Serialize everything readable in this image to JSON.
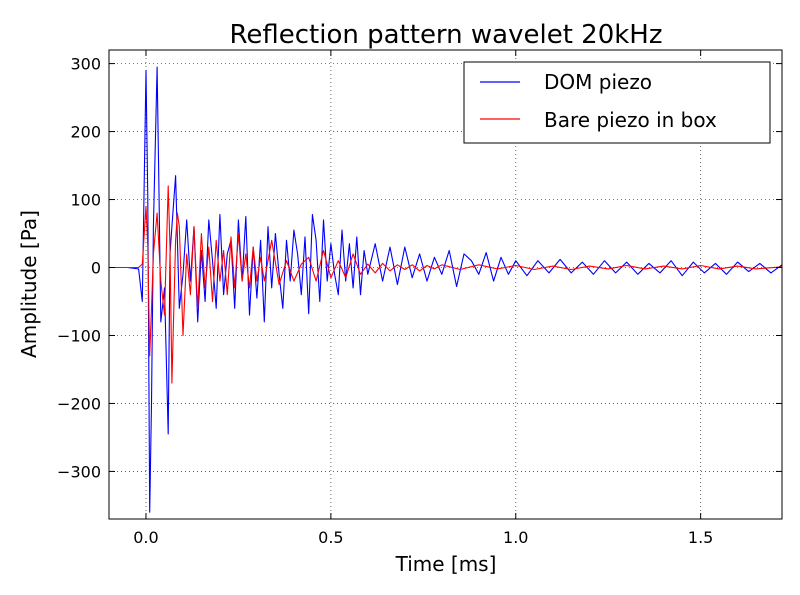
{
  "chart_data": {
    "type": "line",
    "title": "Reflection pattern wavelet 20kHz",
    "xlabel": "Time [ms]",
    "ylabel": "Amplitude [Pa]",
    "xlim": [
      -0.1,
      1.72
    ],
    "ylim": [
      -370,
      320
    ],
    "xticks": [
      0.0,
      0.5,
      1.0,
      1.5
    ],
    "xtick_labels": [
      "0.0",
      "0.5",
      "1.0",
      "1.5"
    ],
    "yticks": [
      300,
      200,
      100,
      0,
      -100,
      -200,
      -300
    ],
    "ytick_labels": [
      "300",
      "200",
      "100",
      "0",
      "−100",
      "−200",
      "−300"
    ],
    "grid": true,
    "legend_position": "top-right",
    "series": [
      {
        "name": "DOM piezo",
        "color": "#0000ff",
        "x": [
          -0.1,
          -0.05,
          -0.02,
          -0.01,
          0.0,
          0.005,
          0.01,
          0.015,
          0.02,
          0.03,
          0.035,
          0.04,
          0.05,
          0.06,
          0.065,
          0.07,
          0.08,
          0.09,
          0.1,
          0.11,
          0.12,
          0.13,
          0.14,
          0.15,
          0.16,
          0.17,
          0.18,
          0.19,
          0.2,
          0.21,
          0.22,
          0.23,
          0.24,
          0.25,
          0.26,
          0.27,
          0.28,
          0.29,
          0.3,
          0.31,
          0.32,
          0.33,
          0.34,
          0.35,
          0.36,
          0.37,
          0.38,
          0.39,
          0.4,
          0.41,
          0.42,
          0.43,
          0.44,
          0.45,
          0.46,
          0.47,
          0.48,
          0.49,
          0.5,
          0.51,
          0.52,
          0.53,
          0.54,
          0.55,
          0.56,
          0.57,
          0.58,
          0.59,
          0.6,
          0.62,
          0.64,
          0.66,
          0.68,
          0.7,
          0.72,
          0.74,
          0.76,
          0.78,
          0.8,
          0.82,
          0.84,
          0.86,
          0.88,
          0.9,
          0.92,
          0.94,
          0.96,
          0.98,
          1.0,
          1.03,
          1.06,
          1.09,
          1.12,
          1.15,
          1.18,
          1.21,
          1.24,
          1.27,
          1.3,
          1.33,
          1.36,
          1.39,
          1.42,
          1.45,
          1.48,
          1.51,
          1.54,
          1.57,
          1.6,
          1.63,
          1.66,
          1.69,
          1.72
        ],
        "y": [
          0,
          0,
          -2,
          -50,
          290,
          100,
          -360,
          -200,
          60,
          295,
          120,
          -80,
          -30,
          -245,
          20,
          60,
          135,
          -60,
          -10,
          70,
          -20,
          60,
          -80,
          25,
          -50,
          70,
          10,
          -60,
          78,
          -40,
          20,
          40,
          -60,
          70,
          -20,
          75,
          -70,
          30,
          -45,
          40,
          -80,
          60,
          -30,
          50,
          -10,
          -60,
          40,
          -20,
          55,
          20,
          -40,
          45,
          -68,
          78,
          40,
          -50,
          70,
          -20,
          35,
          -10,
          -40,
          55,
          -20,
          35,
          -30,
          45,
          -40,
          25,
          -10,
          35,
          -20,
          30,
          -25,
          30,
          -15,
          20,
          -20,
          15,
          -10,
          25,
          -28,
          20,
          10,
          -10,
          22,
          -20,
          15,
          -10,
          10,
          -12,
          10,
          -8,
          12,
          -8,
          8,
          -10,
          10,
          -8,
          8,
          -10,
          6,
          -8,
          10,
          -12,
          8,
          -8,
          6,
          -10,
          8,
          -6,
          6,
          -8,
          4
        ]
      },
      {
        "name": "Bare piezo in box",
        "color": "#ff0000",
        "x": [
          -0.1,
          -0.05,
          -0.02,
          -0.01,
          0.0,
          0.005,
          0.01,
          0.015,
          0.02,
          0.03,
          0.04,
          0.05,
          0.06,
          0.065,
          0.07,
          0.08,
          0.085,
          0.09,
          0.1,
          0.11,
          0.12,
          0.13,
          0.14,
          0.15,
          0.16,
          0.17,
          0.18,
          0.19,
          0.2,
          0.21,
          0.22,
          0.23,
          0.24,
          0.25,
          0.26,
          0.27,
          0.28,
          0.29,
          0.3,
          0.31,
          0.32,
          0.34,
          0.36,
          0.38,
          0.4,
          0.42,
          0.44,
          0.46,
          0.48,
          0.5,
          0.52,
          0.54,
          0.56,
          0.58,
          0.6,
          0.62,
          0.64,
          0.66,
          0.68,
          0.7,
          0.72,
          0.74,
          0.76,
          0.78,
          0.8,
          0.85,
          0.9,
          0.95,
          1.0,
          1.05,
          1.1,
          1.15,
          1.2,
          1.25,
          1.3,
          1.35,
          1.4,
          1.45,
          1.5,
          1.55,
          1.6,
          1.65,
          1.72
        ],
        "y": [
          0,
          0,
          0,
          5,
          90,
          30,
          -130,
          -60,
          20,
          80,
          -20,
          -70,
          120,
          30,
          -170,
          40,
          80,
          60,
          -100,
          20,
          -40,
          60,
          -60,
          50,
          -30,
          30,
          -50,
          40,
          -20,
          25,
          -40,
          45,
          -30,
          50,
          -20,
          20,
          -30,
          30,
          -20,
          15,
          -20,
          40,
          -25,
          10,
          -20,
          5,
          15,
          -20,
          25,
          -15,
          10,
          -15,
          20,
          -10,
          5,
          -8,
          6,
          -5,
          4,
          -3,
          4,
          -5,
          3,
          -2,
          4,
          -3,
          4,
          -2,
          3,
          -3,
          2,
          -3,
          2,
          -2,
          3,
          -2,
          2,
          -2,
          3,
          -2,
          2,
          -2,
          1
        ]
      }
    ]
  }
}
